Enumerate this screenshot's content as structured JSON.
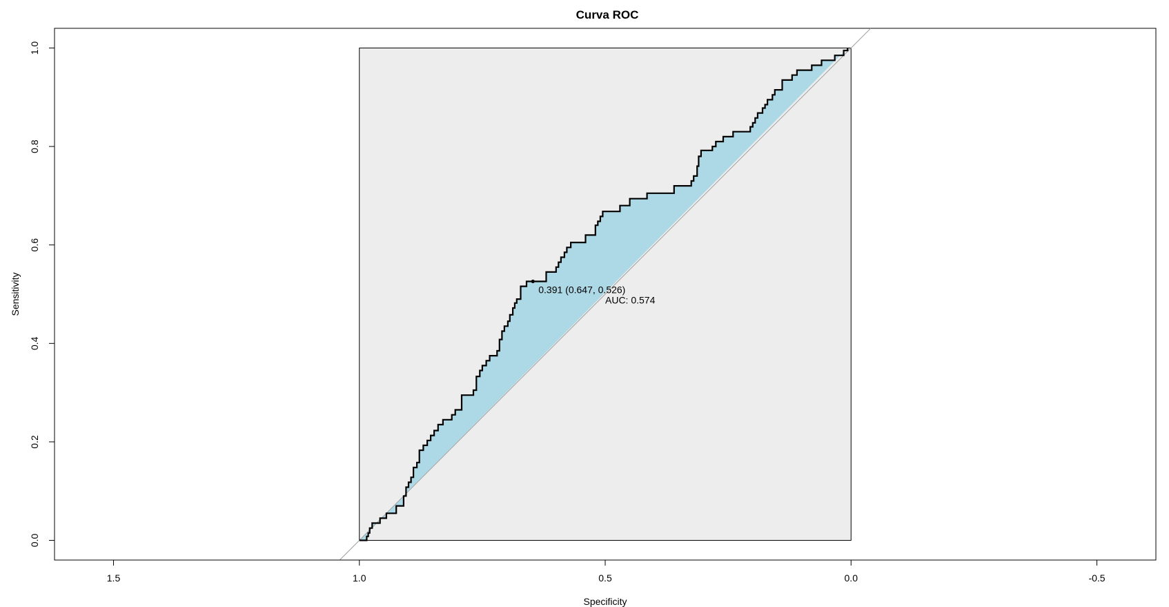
{
  "chart_data": {
    "type": "line",
    "title": "Curva ROC",
    "xlabel": "Specificity",
    "ylabel": "Sensitivity",
    "x_reversed": true,
    "xlim": [
      1.62,
      -0.62
    ],
    "ylim": [
      -0.04,
      1.04
    ],
    "xticks": [
      {
        "value": 1.5,
        "label": "1.5"
      },
      {
        "value": 1.0,
        "label": "1.0"
      },
      {
        "value": 0.5,
        "label": "0.5"
      },
      {
        "value": 0.0,
        "label": "0.0"
      },
      {
        "value": -0.5,
        "label": "-0.5"
      }
    ],
    "yticks": [
      {
        "value": 0.0,
        "label": "0.0"
      },
      {
        "value": 0.2,
        "label": "0.2"
      },
      {
        "value": 0.4,
        "label": "0.4"
      },
      {
        "value": 0.6,
        "label": "0.6"
      },
      {
        "value": 0.8,
        "label": "0.8"
      },
      {
        "value": 1.0,
        "label": "1.0"
      }
    ],
    "colors": {
      "plot_region": "#ededed",
      "auc_fill": "#add8e6",
      "curve": "#000000",
      "diagonal": "#a0a0a0",
      "frame": "#000000"
    },
    "series": [
      {
        "name": "ROC",
        "specificity": [
          1.0,
          0.985,
          0.985,
          0.982,
          0.982,
          0.979,
          0.979,
          0.974,
          0.974,
          0.958,
          0.958,
          0.945,
          0.945,
          0.925,
          0.925,
          0.91,
          0.91,
          0.905,
          0.905,
          0.9,
          0.9,
          0.895,
          0.895,
          0.89,
          0.89,
          0.883,
          0.883,
          0.878,
          0.878,
          0.87,
          0.87,
          0.862,
          0.862,
          0.855,
          0.855,
          0.848,
          0.848,
          0.84,
          0.84,
          0.83,
          0.83,
          0.812,
          0.812,
          0.805,
          0.805,
          0.792,
          0.792,
          0.768,
          0.768,
          0.762,
          0.762,
          0.755,
          0.755,
          0.75,
          0.75,
          0.742,
          0.742,
          0.735,
          0.735,
          0.72,
          0.72,
          0.715,
          0.715,
          0.71,
          0.71,
          0.705,
          0.705,
          0.698,
          0.698,
          0.694,
          0.694,
          0.688,
          0.688,
          0.684,
          0.684,
          0.68,
          0.68,
          0.672,
          0.672,
          0.66,
          0.66,
          0.647,
          0.647,
          0.62,
          0.62,
          0.6,
          0.6,
          0.595,
          0.595,
          0.59,
          0.59,
          0.583,
          0.583,
          0.578,
          0.578,
          0.57,
          0.57,
          0.54,
          0.54,
          0.52,
          0.52,
          0.515,
          0.515,
          0.51,
          0.51,
          0.505,
          0.505,
          0.47,
          0.47,
          0.45,
          0.45,
          0.45,
          0.45,
          0.44,
          0.44,
          0.435,
          0.435,
          0.43,
          0.43,
          0.415,
          0.415,
          0.36,
          0.36,
          0.325,
          0.325,
          0.32,
          0.32,
          0.313,
          0.313,
          0.31,
          0.31,
          0.305,
          0.305,
          0.282,
          0.282,
          0.275,
          0.275,
          0.26,
          0.26,
          0.24,
          0.24,
          0.205,
          0.205,
          0.2,
          0.2,
          0.195,
          0.195,
          0.19,
          0.19,
          0.18,
          0.18,
          0.175,
          0.175,
          0.17,
          0.17,
          0.16,
          0.16,
          0.155,
          0.155,
          0.14,
          0.14,
          0.12,
          0.12,
          0.11,
          0.11,
          0.08,
          0.08,
          0.06,
          0.06,
          0.033,
          0.033,
          0.015,
          0.015,
          0.007,
          0.007,
          0.0
        ],
        "sensitivity": [
          0.0,
          0.0,
          0.008,
          0.008,
          0.015,
          0.015,
          0.025,
          0.025,
          0.035,
          0.035,
          0.045,
          0.045,
          0.055,
          0.055,
          0.07,
          0.07,
          0.09,
          0.09,
          0.108,
          0.108,
          0.118,
          0.118,
          0.128,
          0.128,
          0.148,
          0.148,
          0.158,
          0.158,
          0.183,
          0.183,
          0.193,
          0.193,
          0.203,
          0.203,
          0.213,
          0.213,
          0.223,
          0.223,
          0.235,
          0.235,
          0.245,
          0.245,
          0.255,
          0.255,
          0.265,
          0.265,
          0.295,
          0.295,
          0.305,
          0.305,
          0.333,
          0.333,
          0.345,
          0.345,
          0.355,
          0.355,
          0.365,
          0.365,
          0.375,
          0.375,
          0.385,
          0.385,
          0.408,
          0.408,
          0.425,
          0.425,
          0.435,
          0.435,
          0.445,
          0.445,
          0.458,
          0.458,
          0.472,
          0.472,
          0.482,
          0.482,
          0.49,
          0.49,
          0.516,
          0.516,
          0.526,
          0.526,
          0.526,
          0.526,
          0.545,
          0.545,
          0.555,
          0.555,
          0.565,
          0.565,
          0.575,
          0.575,
          0.585,
          0.585,
          0.595,
          0.595,
          0.605,
          0.605,
          0.62,
          0.62,
          0.64,
          0.64,
          0.648,
          0.648,
          0.658,
          0.658,
          0.668,
          0.668,
          0.68,
          0.68,
          0.684,
          0.684,
          0.694,
          0.694,
          0.694,
          0.694,
          0.694,
          0.694,
          0.694,
          0.694,
          0.705,
          0.705,
          0.72,
          0.72,
          0.73,
          0.73,
          0.74,
          0.74,
          0.76,
          0.76,
          0.78,
          0.78,
          0.792,
          0.792,
          0.8,
          0.8,
          0.81,
          0.81,
          0.82,
          0.82,
          0.83,
          0.83,
          0.84,
          0.84,
          0.848,
          0.848,
          0.858,
          0.858,
          0.868,
          0.868,
          0.878,
          0.878,
          0.885,
          0.885,
          0.895,
          0.895,
          0.905,
          0.905,
          0.915,
          0.915,
          0.935,
          0.935,
          0.945,
          0.945,
          0.955,
          0.955,
          0.965,
          0.965,
          0.975,
          0.975,
          0.985,
          0.985,
          0.995,
          0.995,
          1.0
        ]
      }
    ],
    "best_threshold": {
      "label": "0.391 (0.647, 0.526)",
      "threshold": 0.391,
      "specificity": 0.647,
      "sensitivity": 0.526
    },
    "auc": {
      "label": "AUC: 0.574",
      "value": 0.574
    }
  }
}
